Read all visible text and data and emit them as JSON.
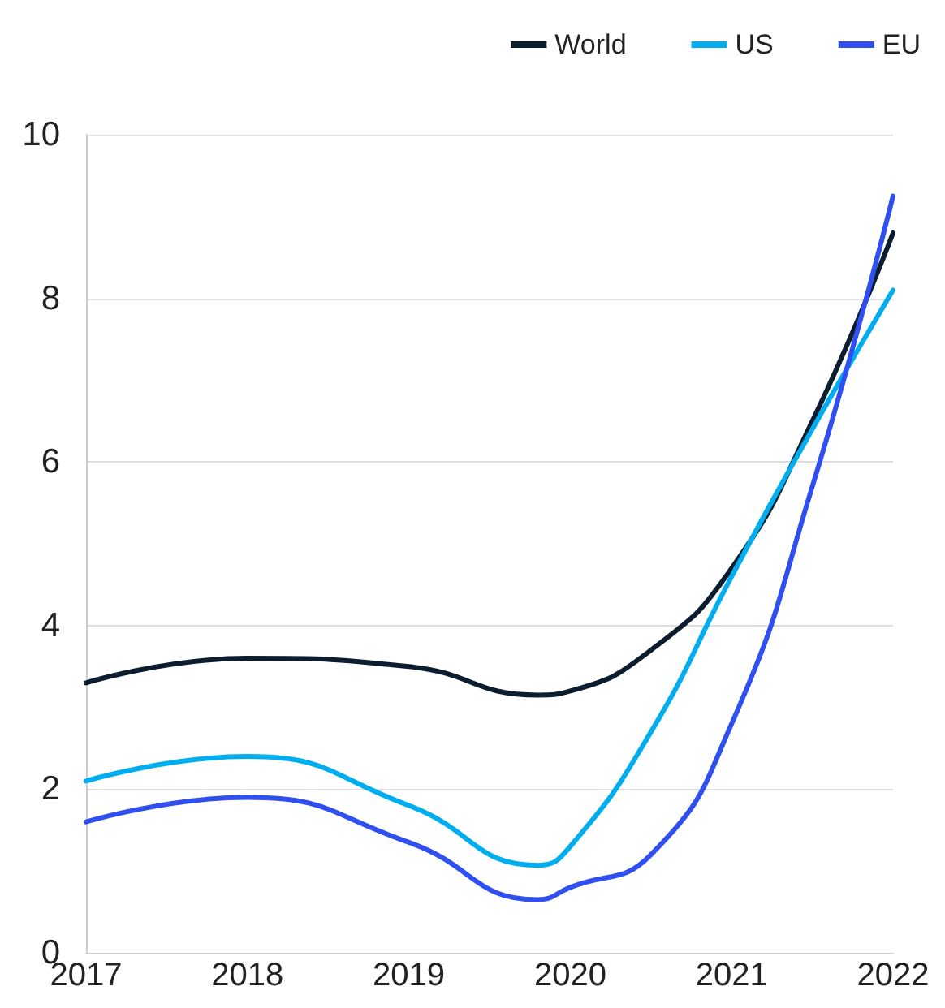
{
  "chart_data": {
    "type": "line",
    "x": [
      2017,
      2018,
      2019,
      2019.8,
      2020,
      2020.5,
      2021,
      2021.5,
      2022
    ],
    "xlim": [
      2017,
      2022
    ],
    "xticks": [
      2017,
      2018,
      2019,
      2020,
      2021,
      2022
    ],
    "ylim": [
      0,
      10
    ],
    "yticks": [
      0,
      2,
      4,
      6,
      8,
      10
    ],
    "grid": "y",
    "legend": "top right",
    "marker": "none",
    "line_style": "solid",
    "series": [
      {
        "name": "World",
        "color": "#0b1d2e",
        "values": [
          3.3,
          3.6,
          3.5,
          3.15,
          3.2,
          3.7,
          4.7,
          6.5,
          8.8
        ]
      },
      {
        "name": "US",
        "color": "#00aeef",
        "values": [
          2.1,
          2.4,
          1.8,
          1.07,
          1.3,
          2.7,
          4.6,
          6.4,
          8.1
        ]
      },
      {
        "name": "EU",
        "color": "#2f4ff0",
        "values": [
          1.6,
          1.9,
          1.35,
          0.65,
          0.8,
          1.2,
          2.8,
          5.7,
          9.25
        ]
      }
    ]
  }
}
